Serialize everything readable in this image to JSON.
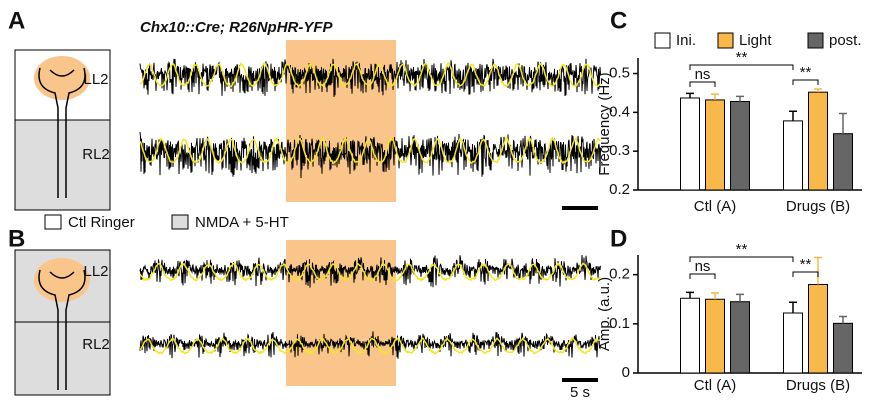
{
  "panel_letters": [
    "A",
    "B",
    "C",
    "D"
  ],
  "title": "Chx10::Cre; R26NpHR-YFP",
  "trace_labels": [
    "LL2",
    "RL2"
  ],
  "legend_ab": [
    "Ctl Ringer",
    "NMDA + 5-HT"
  ],
  "scale_bar": "5 s",
  "chart_data": [
    {
      "type": "bar",
      "ylabel": "Frequency (Hz)",
      "categories": [
        "Ctl (A)",
        "Drugs (B)"
      ],
      "series": [
        {
          "name": "Ini.",
          "color": "#ffffff",
          "values": [
            0.437,
            0.378
          ],
          "errors": [
            0.012,
            0.025
          ]
        },
        {
          "name": "Light",
          "color": "#f9b84a",
          "values": [
            0.432,
            0.452
          ],
          "errors": [
            0.015,
            0.008
          ]
        },
        {
          "name": "post.",
          "color": "#666666",
          "values": [
            0.428,
            0.345
          ],
          "errors": [
            0.013,
            0.052
          ]
        }
      ],
      "ylim": [
        0.2,
        0.54
      ],
      "yticks": [
        0.2,
        0.3,
        0.4,
        0.5
      ],
      "annotations": [
        "ns",
        "**",
        "**"
      ]
    },
    {
      "type": "bar",
      "ylabel": "Amp. (a.u.)",
      "categories": [
        "Ctl (A)",
        "Drugs (B)"
      ],
      "series": [
        {
          "color": "#ffffff",
          "values": [
            0.152,
            0.122
          ],
          "errors": [
            0.012,
            0.022
          ]
        },
        {
          "color": "#f9b84a",
          "values": [
            0.15,
            0.18
          ],
          "errors": [
            0.013,
            0.055
          ]
        },
        {
          "color": "#666666",
          "values": [
            0.145,
            0.101
          ],
          "errors": [
            0.015,
            0.014
          ]
        }
      ],
      "ylim": [
        0,
        0.24
      ],
      "yticks": [
        0,
        0.1,
        0.2
      ],
      "annotations": [
        "ns",
        "**",
        "**"
      ]
    }
  ]
}
